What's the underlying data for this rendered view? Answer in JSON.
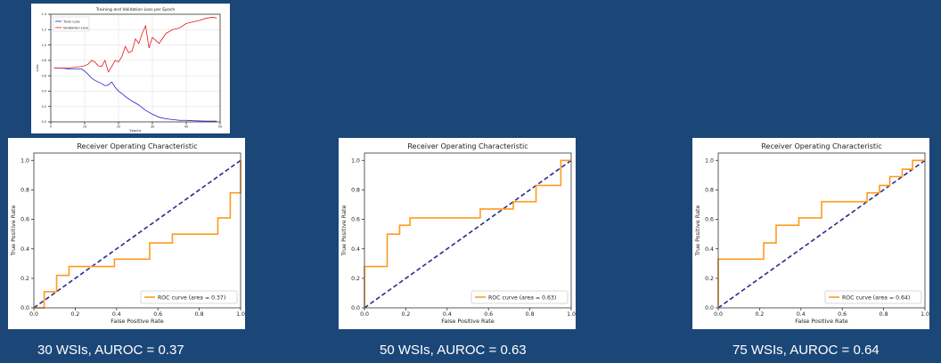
{
  "colors": {
    "background": "#1b4678",
    "roc": "#ff9a1f",
    "diagonal": "#2a2a8f",
    "train": "#1f1fd0",
    "val": "#e8171b"
  },
  "chart_data": [
    {
      "type": "line",
      "title": "Training and Validation Loss per Epoch",
      "xlabel": "Epochs",
      "ylabel": "Loss",
      "xlim": [
        0,
        50
      ],
      "ylim": [
        0,
        1.4
      ],
      "xticks": [
        "0",
        "10",
        "20",
        "30",
        "40",
        "50"
      ],
      "yticks": [
        "0.0",
        "0.2",
        "0.4",
        "0.6",
        "0.8",
        "1.0",
        "1.2",
        "1.4"
      ],
      "legend": "top-left",
      "grid": true,
      "series": [
        {
          "name": "Train Loss",
          "color": "#1f1fd0",
          "x": [
            1,
            3,
            5,
            7,
            9,
            10,
            11,
            12,
            13,
            14,
            15,
            16,
            17,
            18,
            19,
            20,
            21,
            22,
            23,
            24,
            26,
            28,
            30,
            32,
            34,
            36,
            38,
            40,
            42,
            44,
            46,
            48,
            49
          ],
          "y": [
            0.7,
            0.7,
            0.69,
            0.69,
            0.69,
            0.66,
            0.62,
            0.57,
            0.54,
            0.52,
            0.5,
            0.47,
            0.48,
            0.52,
            0.45,
            0.4,
            0.37,
            0.33,
            0.3,
            0.27,
            0.22,
            0.15,
            0.1,
            0.06,
            0.04,
            0.03,
            0.02,
            0.02,
            0.015,
            0.012,
            0.01,
            0.01,
            0.01
          ]
        },
        {
          "name": "Validation Loss",
          "color": "#e8171b",
          "x": [
            1,
            3,
            5,
            7,
            9,
            10,
            11,
            12,
            13,
            14,
            15,
            16,
            17,
            18,
            19,
            20,
            21,
            22,
            23,
            24,
            25,
            26,
            27,
            28,
            29,
            30,
            32,
            34,
            36,
            38,
            40,
            42,
            44,
            46,
            48,
            49
          ],
          "y": [
            0.7,
            0.7,
            0.7,
            0.71,
            0.72,
            0.73,
            0.75,
            0.8,
            0.78,
            0.73,
            0.72,
            0.8,
            0.65,
            0.72,
            0.8,
            0.78,
            0.85,
            0.98,
            0.9,
            0.92,
            1.08,
            1.02,
            1.15,
            1.25,
            0.96,
            1.1,
            1.02,
            1.15,
            1.2,
            1.22,
            1.28,
            1.3,
            1.32,
            1.35,
            1.36,
            1.35
          ]
        }
      ]
    },
    {
      "type": "line",
      "title": "Receiver Operating Characteristic",
      "xlabel": "False Positive Rate",
      "ylabel": "True Positive Rate",
      "xlim": [
        0,
        1
      ],
      "ylim": [
        0,
        1.05
      ],
      "xticks": [
        "0.0",
        "0.2",
        "0.4",
        "0.6",
        "0.8",
        "1.0"
      ],
      "yticks": [
        "0.0",
        "0.2",
        "0.4",
        "0.6",
        "0.8",
        "1.0"
      ],
      "legend": "lower-right",
      "series": [
        {
          "name": "ROC curve (area = 0.37)",
          "x": [
            0,
            0.05,
            0.05,
            0.11,
            0.11,
            0.17,
            0.17,
            0.39,
            0.39,
            0.56,
            0.56,
            0.67,
            0.67,
            0.89,
            0.89,
            0.95,
            0.95,
            1.0,
            1.0
          ],
          "y": [
            0,
            0,
            0.11,
            0.11,
            0.22,
            0.22,
            0.28,
            0.28,
            0.33,
            0.33,
            0.44,
            0.44,
            0.5,
            0.5,
            0.61,
            0.61,
            0.78,
            0.78,
            1.0
          ]
        }
      ]
    },
    {
      "type": "line",
      "title": "Receiver Operating Characteristic",
      "xlabel": "False Positive Rate",
      "ylabel": "True Positive Rate",
      "xlim": [
        0,
        1
      ],
      "ylim": [
        0,
        1.05
      ],
      "xticks": [
        "0.0",
        "0.2",
        "0.4",
        "0.6",
        "0.8",
        "1.0"
      ],
      "yticks": [
        "0.0",
        "0.2",
        "0.4",
        "0.6",
        "0.8",
        "1.0"
      ],
      "legend": "lower-right",
      "series": [
        {
          "name": "ROC curve (area = 0.63)",
          "x": [
            0,
            0,
            0.11,
            0.11,
            0.17,
            0.17,
            0.22,
            0.22,
            0.56,
            0.56,
            0.72,
            0.72,
            0.83,
            0.83,
            0.95,
            0.95,
            1.0
          ],
          "y": [
            0,
            0.28,
            0.28,
            0.5,
            0.5,
            0.56,
            0.56,
            0.61,
            0.61,
            0.67,
            0.67,
            0.72,
            0.72,
            0.83,
            0.83,
            1.0,
            1.0
          ]
        }
      ]
    },
    {
      "type": "line",
      "title": "Receiver Operating Characteristic",
      "xlabel": "False Positive Rate",
      "ylabel": "True Positive Rate",
      "xlim": [
        0,
        1
      ],
      "ylim": [
        0,
        1.05
      ],
      "xticks": [
        "0.0",
        "0.2",
        "0.4",
        "0.6",
        "0.8",
        "1.0"
      ],
      "yticks": [
        "0.0",
        "0.2",
        "0.4",
        "0.6",
        "0.8",
        "1.0"
      ],
      "legend": "lower-right",
      "series": [
        {
          "name": "ROC curve (area = 0.64)",
          "x": [
            0,
            0,
            0.22,
            0.22,
            0.28,
            0.28,
            0.39,
            0.39,
            0.5,
            0.5,
            0.72,
            0.72,
            0.78,
            0.78,
            0.83,
            0.83,
            0.89,
            0.89,
            0.94,
            0.94,
            1.0
          ],
          "y": [
            0,
            0.33,
            0.33,
            0.44,
            0.44,
            0.56,
            0.56,
            0.61,
            0.61,
            0.72,
            0.72,
            0.78,
            0.78,
            0.83,
            0.83,
            0.89,
            0.89,
            0.94,
            0.94,
            1.0,
            1.0
          ]
        }
      ]
    }
  ],
  "captions": [
    "30 WSIs, AUROC = 0.37",
    "50 WSIs, AUROC = 0.63",
    "75 WSIs, AUROC = 0.64"
  ]
}
